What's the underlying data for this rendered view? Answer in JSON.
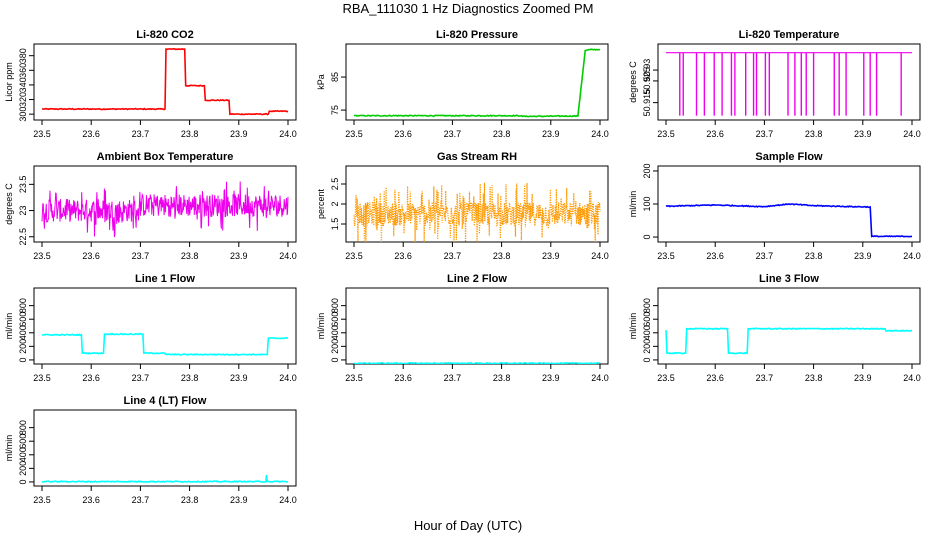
{
  "figure": {
    "title": "RBA_111030  1 Hz Diagnostics Zoomed PM",
    "xlabel": "Hour of Day (UTC)"
  },
  "chart_data": [
    {
      "type": "line",
      "title": "Li-820 CO2",
      "ylabel": "Licor ppm",
      "color": "#ff0000",
      "xlim": [
        23.5,
        24.0
      ],
      "xticks": [
        "23.5",
        "23.6",
        "23.7",
        "23.8",
        "23.9",
        "24.0"
      ],
      "ylim": [
        292,
        396
      ],
      "yticks": [
        300,
        320,
        340,
        360,
        380
      ],
      "series": [
        {
          "x": [
            23.5,
            23.75,
            23.752,
            23.79,
            23.792,
            23.83,
            23.832,
            23.88,
            23.882,
            23.96,
            23.962,
            24.0
          ],
          "y": [
            307,
            307,
            389,
            389,
            339,
            339,
            319,
            319,
            300,
            300,
            304,
            304
          ]
        }
      ]
    },
    {
      "type": "line",
      "title": "Li-820 Pressure",
      "ylabel": "kPa",
      "color": "#00cc00",
      "xlim": [
        23.5,
        24.0
      ],
      "xticks": [
        "23.5",
        "23.6",
        "23.7",
        "23.8",
        "23.9",
        "24.0"
      ],
      "ylim": [
        72,
        95
      ],
      "yticks": [
        75,
        85
      ],
      "series": [
        {
          "x": [
            23.5,
            23.84,
            23.842,
            23.955,
            23.97,
            23.98,
            24.0
          ],
          "y": [
            73.3,
            73.3,
            73.1,
            73.2,
            93,
            93.3,
            93.3
          ]
        }
      ]
    },
    {
      "type": "line",
      "title": "Li-820 Temperature",
      "ylabel": "degrees C",
      "color": "#ee00ee",
      "xlim": [
        23.5,
        24.0
      ],
      "xticks": [
        "23.5",
        "23.6",
        "23.7",
        "23.8",
        "23.9",
        "24.0"
      ],
      "ylim": [
        50.907,
        50.942
      ],
      "yticks": [
        50.915,
        50.925,
        50.93
      ],
      "baseline": 50.938,
      "dips": [
        23.528,
        23.535,
        23.562,
        23.578,
        23.598,
        23.614,
        23.633,
        23.64,
        23.662,
        23.678,
        23.684,
        23.702,
        23.71,
        23.748,
        23.762,
        23.775,
        23.785,
        23.8,
        23.842,
        23.852,
        23.866,
        23.902,
        23.915,
        23.928,
        23.978
      ],
      "dip_value": 50.909
    },
    {
      "type": "line",
      "title": "Ambient Box Temperature",
      "ylabel": "degrees C",
      "color": "#ee00ee",
      "xlim": [
        23.5,
        24.0
      ],
      "xticks": [
        "23.5",
        "23.6",
        "23.7",
        "23.8",
        "23.9",
        "24.0"
      ],
      "ylim": [
        22.4,
        23.85
      ],
      "yticks": [
        22.5,
        23.0,
        23.5
      ],
      "noise": {
        "mean_start": 23.0,
        "mean_mid": 23.1,
        "spread": 0.22
      }
    },
    {
      "type": "scatter",
      "title": "Gas Stream RH",
      "ylabel": "percent",
      "color": "#ff9900",
      "xlim": [
        23.5,
        24.0
      ],
      "xticks": [
        "23.5",
        "23.6",
        "23.7",
        "23.8",
        "23.9",
        "24.0"
      ],
      "ylim": [
        1.05,
        2.95
      ],
      "yticks": [
        1.5,
        2.0,
        2.5
      ],
      "noise": {
        "mean": 1.75,
        "spread": 0.3
      }
    },
    {
      "type": "line",
      "title": "Sample Flow",
      "ylabel": "ml/min",
      "color": "#0000ff",
      "xlim": [
        23.5,
        24.0
      ],
      "xticks": [
        "23.5",
        "23.6",
        "23.7",
        "23.8",
        "23.9",
        "24.0"
      ],
      "ylim": [
        -15,
        215
      ],
      "yticks": [
        0,
        100,
        200
      ],
      "series": [
        {
          "x": [
            23.5,
            23.6,
            23.7,
            23.75,
            23.8,
            23.85,
            23.915,
            23.918,
            24.0
          ],
          "y": [
            93,
            97,
            92,
            100,
            95,
            93,
            91,
            2,
            2
          ]
        }
      ]
    },
    {
      "type": "line",
      "title": "Line 1 Flow",
      "ylabel": "ml/min",
      "color": "#00ffff",
      "xlim": [
        23.5,
        24.0
      ],
      "xticks": [
        "23.5",
        "23.6",
        "23.7",
        "23.8",
        "23.9",
        "24.0"
      ],
      "ylim": [
        -60,
        1060
      ],
      "yticks": [
        0,
        200,
        400,
        600,
        800
      ],
      "series": [
        {
          "x": [
            23.5,
            23.58,
            23.582,
            23.625,
            23.627,
            23.705,
            23.707,
            23.75,
            23.752,
            23.958,
            23.96,
            24.0
          ],
          "y": [
            370,
            370,
            100,
            100,
            380,
            380,
            100,
            100,
            80,
            80,
            320,
            320
          ]
        }
      ]
    },
    {
      "type": "line",
      "title": "Line 2 Flow",
      "ylabel": "ml/min",
      "color": "#00ffff",
      "xlim": [
        23.5,
        24.0
      ],
      "xticks": [
        "23.5",
        "23.6",
        "23.7",
        "23.8",
        "23.9",
        "24.0"
      ],
      "ylim": [
        -60,
        1060
      ],
      "yticks": [
        0,
        200,
        400,
        600,
        800
      ],
      "series": [
        {
          "x": [
            23.5,
            24.0
          ],
          "y": [
            -50,
            -50
          ]
        }
      ]
    },
    {
      "type": "line",
      "title": "Line 3 Flow",
      "ylabel": "ml/min",
      "color": "#00ffff",
      "xlim": [
        23.5,
        24.0
      ],
      "xticks": [
        "23.5",
        "23.6",
        "23.7",
        "23.8",
        "23.9",
        "24.0"
      ],
      "ylim": [
        -60,
        1060
      ],
      "yticks": [
        0,
        200,
        400,
        600,
        800
      ],
      "series": [
        {
          "x": [
            23.5,
            23.502,
            23.54,
            23.542,
            23.625,
            23.627,
            23.665,
            23.667,
            23.945,
            23.947,
            24.0
          ],
          "y": [
            440,
            100,
            100,
            460,
            460,
            100,
            100,
            460,
            460,
            430,
            430
          ]
        }
      ]
    },
    {
      "type": "line",
      "title": "Line 4 (LT) Flow",
      "ylabel": "ml/min",
      "color": "#00ffff",
      "xlim": [
        23.5,
        24.0
      ],
      "xticks": [
        "23.5",
        "23.6",
        "23.7",
        "23.8",
        "23.9",
        "24.0"
      ],
      "ylim": [
        -60,
        1060
      ],
      "yticks": [
        0,
        200,
        400,
        600,
        800
      ],
      "series": [
        {
          "x": [
            23.5,
            23.955,
            23.956,
            23.958,
            23.96,
            24.0
          ],
          "y": [
            5,
            5,
            100,
            5,
            5,
            5
          ]
        }
      ]
    }
  ]
}
